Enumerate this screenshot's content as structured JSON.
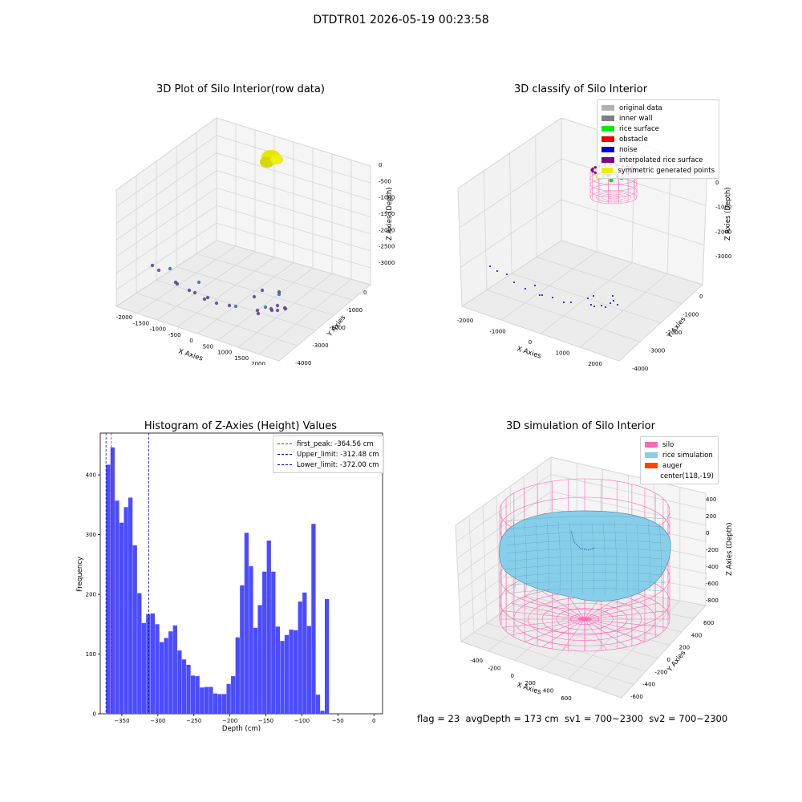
{
  "suptitle": "DTDTR01 2026-05-19 00:23:58",
  "status_line": "flag = 23  avgDepth = 173 cm  sv1 = 700~2300  sv2 = 700~2300",
  "chart_data": [
    {
      "type": "scatter",
      "title": "3D Plot of Silo Interior(row data)",
      "xlabel": "X Axies",
      "ylabel": "Y Axies",
      "zlabel": "Z Axies (Depth)",
      "xticks": [
        "-2000",
        "-1500",
        "-1000",
        "-500",
        "0",
        "500",
        "1000",
        "1500",
        "2000"
      ],
      "yticks": [
        "0",
        "-1000",
        "-2000",
        "-3000",
        "-4000"
      ],
      "zticks": [
        "0",
        "-500",
        "-1000",
        "-1500",
        "-2000",
        "-2500",
        "-3000"
      ],
      "xlim": [
        -2100,
        2200
      ],
      "ylim": [
        -4200,
        300
      ],
      "zlim": [
        -3300,
        200
      ],
      "colors": {
        "cluster": "#dddd00",
        "points": "#5b3f8c",
        "points_alt": "#3b6b9c"
      }
    },
    {
      "type": "scatter",
      "title": "3D classify of Silo Interior",
      "xlabel": "X Axies",
      "ylabel": "Y Axies",
      "zlabel": "Z Axies (Depth)",
      "xticks": [
        "-2000",
        "-1000",
        "0",
        "1000",
        "2000"
      ],
      "yticks": [
        "0",
        "-1000",
        "-2000",
        "-3000",
        "-4000"
      ],
      "zticks": [
        "0",
        "-1000",
        "-2000",
        "-3000"
      ],
      "legend": [
        {
          "label": "original data",
          "color": "#b0b0b0"
        },
        {
          "label": "inner wall",
          "color": "#808080"
        },
        {
          "label": "rice surface",
          "color": "#00ee00"
        },
        {
          "label": "obstacle",
          "color": "#ee0000"
        },
        {
          "label": "noise",
          "color": "#0000dd"
        },
        {
          "label": "interpolated rice surface",
          "color": "#800080"
        },
        {
          "label": "symmetric generated points",
          "color": "#eeee00"
        }
      ]
    },
    {
      "type": "bar",
      "title": "Histogram of Z-Axies (Height) Values",
      "xlabel": "Depth (cm)",
      "ylabel": "Frequency",
      "xlim": [
        -380,
        12
      ],
      "ylim": [
        0,
        470
      ],
      "xticks": [
        -350,
        -300,
        -250,
        -200,
        -150,
        -100,
        -50,
        0
      ],
      "xtick_labels": [
        "−350",
        "−300",
        "−250",
        "−200",
        "−150",
        "−100",
        "−50",
        "0"
      ],
      "yticks": [
        0,
        100,
        200,
        300,
        400
      ],
      "bin_start": -372,
      "bin_width": 6.2,
      "values": [
        417,
        446,
        357,
        320,
        346,
        362,
        282,
        202,
        152,
        167,
        168,
        150,
        120,
        127,
        138,
        148,
        106,
        91,
        82,
        64,
        63,
        44,
        45,
        45,
        34,
        33,
        33,
        50,
        63,
        128,
        215,
        303,
        247,
        144,
        182,
        238,
        290,
        238,
        146,
        122,
        132,
        141,
        140,
        188,
        203,
        147,
        318,
        32,
        5,
        192
      ],
      "bar_color": "#4b4bff",
      "vlines": [
        {
          "label": "first_peak: -364.56 cm",
          "x": -364.56,
          "color": "#ff0000"
        },
        {
          "label": "Upper_limit: -312.48 cm",
          "x": -312.48,
          "color": "#0000ff"
        },
        {
          "label": "Lower_limit: -372.00 cm",
          "x": -372.0,
          "color": "#0000ff"
        }
      ],
      "legend_position": "top-right"
    },
    {
      "type": "area",
      "title": "3D simulation of Silo Interior",
      "xlabel": "X Axies",
      "ylabel": "Y Axies",
      "zlabel": "Z Axies (Depth)",
      "xticks": [
        "-400",
        "-200",
        "0",
        "200",
        "400",
        "600"
      ],
      "yticks": [
        "600",
        "400",
        "200",
        "0",
        "-200",
        "-400",
        "-600"
      ],
      "zticks": [
        "400",
        "200",
        "0",
        "-200",
        "-400",
        "-600",
        "-800"
      ],
      "legend": [
        {
          "label": "silo",
          "color": "#ff69b4"
        },
        {
          "label": "rice simulation",
          "color": "#87ceeb"
        },
        {
          "label": "auger",
          "color": "#ff4500"
        },
        {
          "label": "center(118,-19)",
          "color": ""
        }
      ]
    }
  ]
}
